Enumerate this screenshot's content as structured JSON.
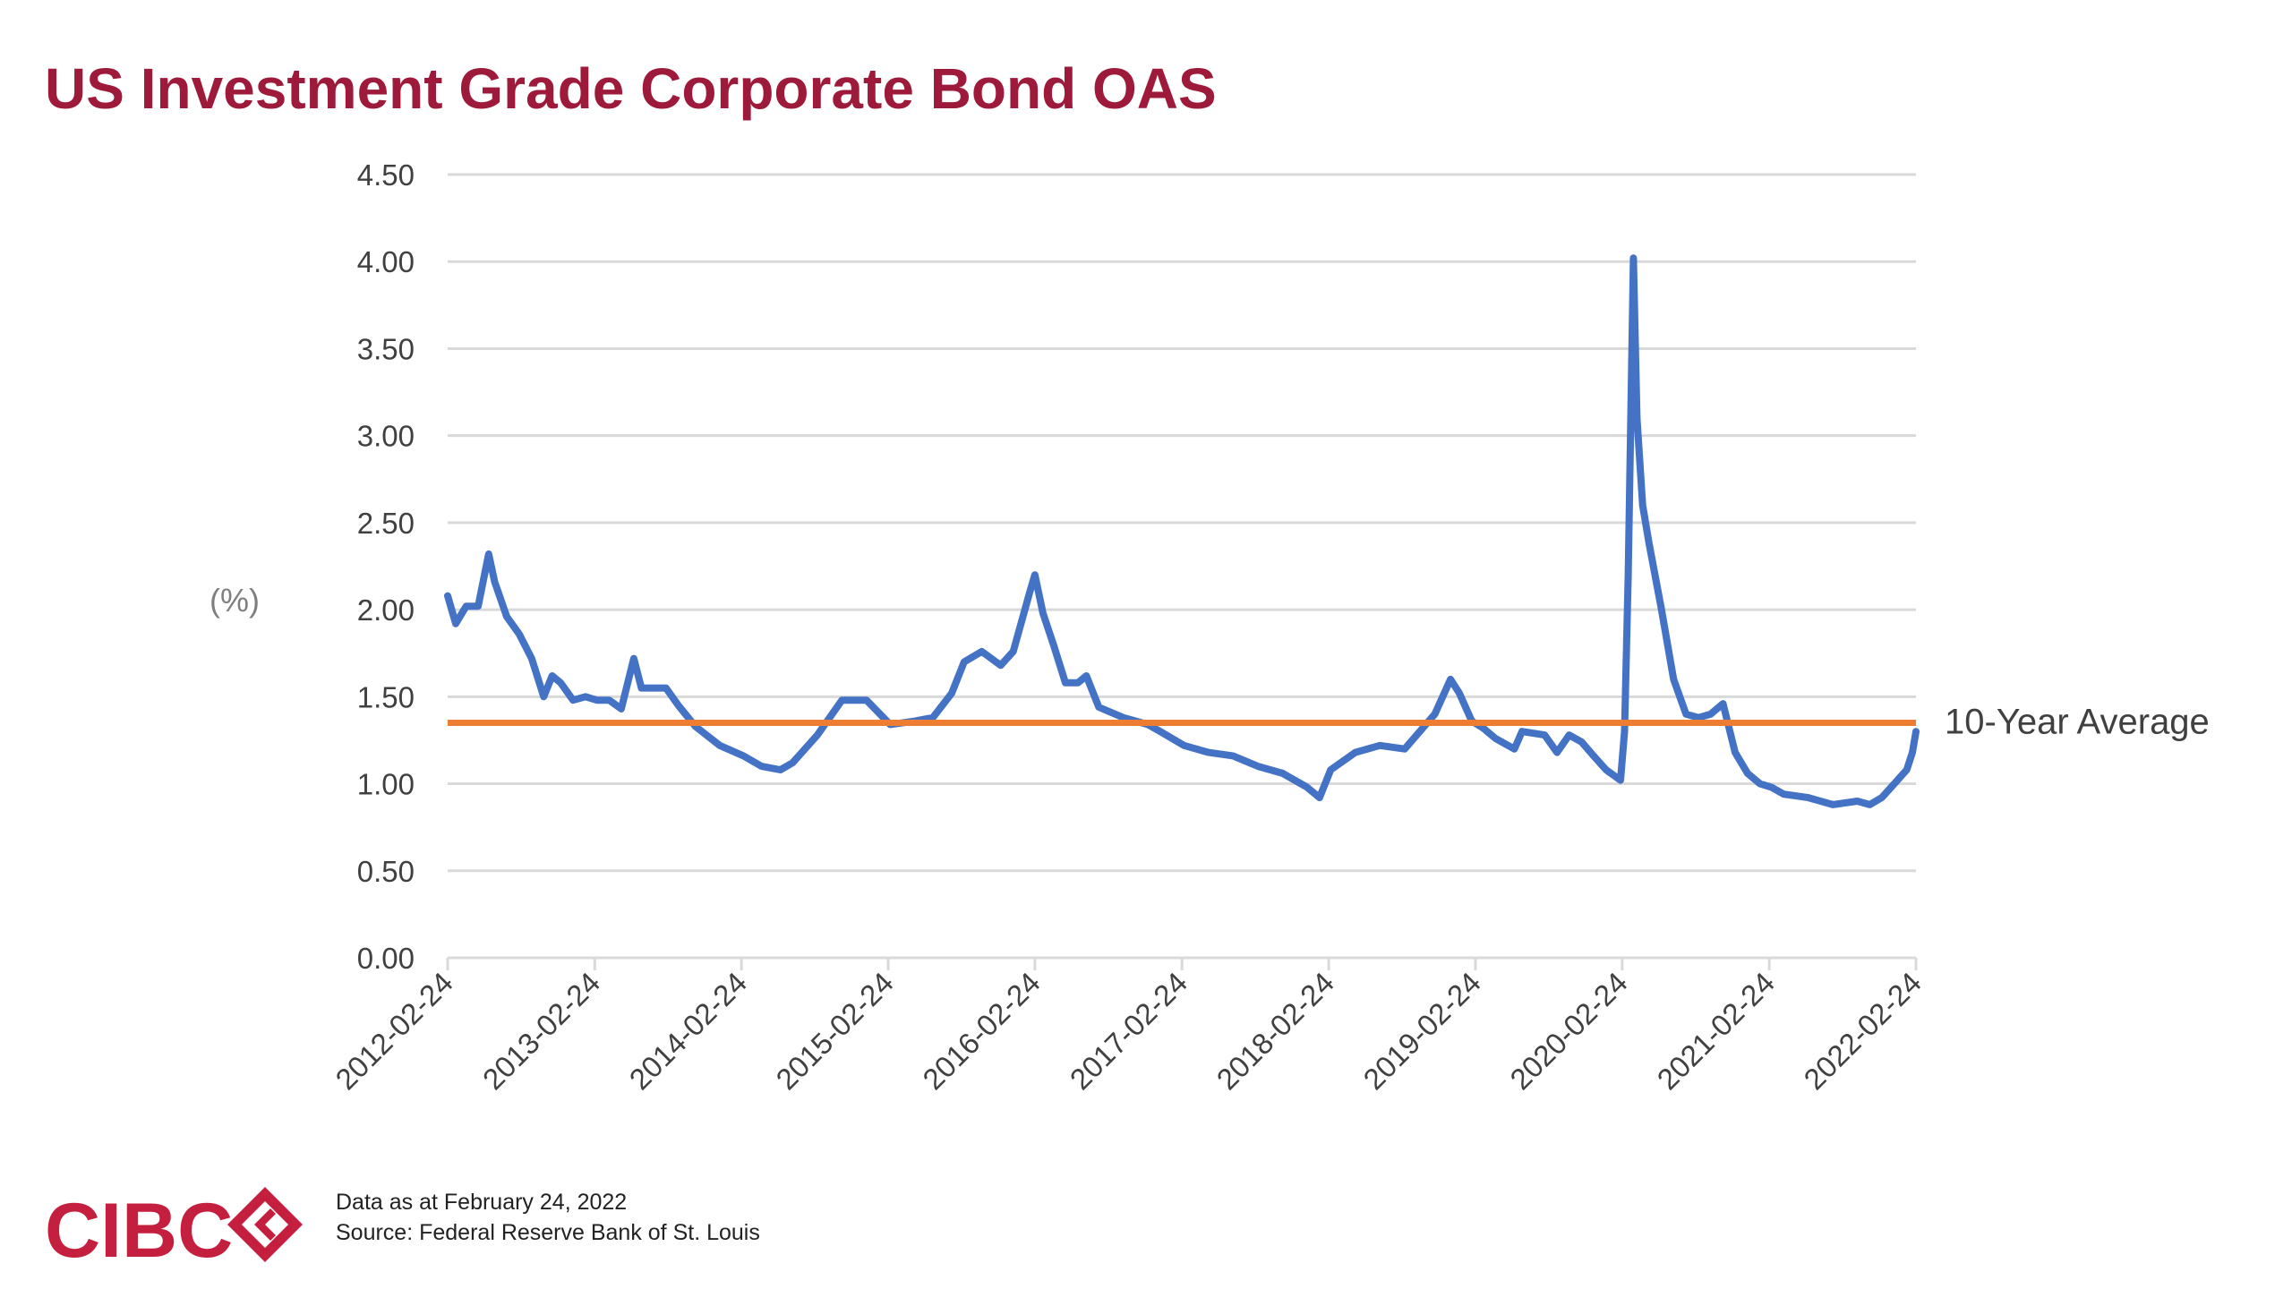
{
  "title": "US Investment Grade Corporate Bond OAS",
  "footer": {
    "data_as_at": "Data as at February 24, 2022",
    "source": "Source: Federal Reserve Bank of St. Louis"
  },
  "logo": {
    "text": "CIBC",
    "icon": "cibc-diamond-logo"
  },
  "colors": {
    "title": "#9e1a3a",
    "series": "#4472c4",
    "average": "#ed7d31",
    "grid": "#d9d9d9",
    "tick_text": "#404040",
    "logo": "#c41f3e"
  },
  "chart_data": {
    "type": "line",
    "title": "US Investment Grade Corporate Bond OAS",
    "xlabel": "",
    "ylabel": "(%)",
    "ylim": [
      0,
      4.5
    ],
    "yticks": [
      "0.00",
      "0.50",
      "1.00",
      "1.50",
      "2.00",
      "2.50",
      "3.00",
      "3.50",
      "4.00",
      "4.50"
    ],
    "x_ticks": [
      "2012-02-24",
      "2013-02-24",
      "2014-02-24",
      "2015-02-24",
      "2016-02-24",
      "2017-02-24",
      "2018-02-24",
      "2019-02-24",
      "2020-02-24",
      "2021-02-24",
      "2022-02-24"
    ],
    "grid": "horizontal",
    "series": [
      {
        "name": "",
        "x": [
          "2012-02-24",
          "2012-03-15",
          "2012-04-10",
          "2012-05-10",
          "2012-06-05",
          "2012-06-20",
          "2012-07-20",
          "2012-08-20",
          "2012-09-20",
          "2012-10-20",
          "2012-11-10",
          "2012-12-01",
          "2013-01-01",
          "2013-02-01",
          "2013-03-01",
          "2013-04-01",
          "2013-05-01",
          "2013-06-01",
          "2013-06-20",
          "2013-07-20",
          "2013-08-20",
          "2013-09-20",
          "2013-11-01",
          "2014-01-01",
          "2014-03-01",
          "2014-04-15",
          "2014-06-01",
          "2014-07-01",
          "2014-09-01",
          "2014-11-01",
          "2015-01-01",
          "2015-03-01",
          "2015-05-01",
          "2015-06-15",
          "2015-08-01",
          "2015-09-01",
          "2015-10-15",
          "2015-12-01",
          "2016-01-01",
          "2016-02-11",
          "2016-02-24",
          "2016-03-15",
          "2016-04-10",
          "2016-05-10",
          "2016-06-10",
          "2016-07-01",
          "2016-08-01",
          "2016-10-01",
          "2016-12-01",
          "2017-01-01",
          "2017-03-01",
          "2017-05-01",
          "2017-07-01",
          "2017-09-01",
          "2017-11-01",
          "2018-01-01",
          "2018-02-01",
          "2018-03-01",
          "2018-05-01",
          "2018-07-01",
          "2018-09-01",
          "2018-10-01",
          "2018-11-15",
          "2018-12-24",
          "2019-01-15",
          "2019-02-15",
          "2019-03-15",
          "2019-04-15",
          "2019-06-01",
          "2019-06-20",
          "2019-08-15",
          "2019-09-15",
          "2019-10-15",
          "2019-11-15",
          "2019-12-15",
          "2020-01-15",
          "2020-02-20",
          "2020-03-01",
          "2020-03-10",
          "2020-03-23",
          "2020-04-01",
          "2020-04-15",
          "2020-05-01",
          "2020-06-01",
          "2020-07-01",
          "2020-08-01",
          "2020-09-01",
          "2020-10-01",
          "2020-11-01",
          "2020-12-01",
          "2021-01-01",
          "2021-02-01",
          "2021-03-01",
          "2021-04-01",
          "2021-06-01",
          "2021-08-01",
          "2021-10-01",
          "2021-11-01",
          "2021-12-01",
          "2022-01-01",
          "2022-02-01",
          "2022-02-15",
          "2022-02-24"
        ],
        "values": [
          2.08,
          1.92,
          2.02,
          2.02,
          2.32,
          2.16,
          1.96,
          1.86,
          1.72,
          1.5,
          1.62,
          1.58,
          1.48,
          1.5,
          1.48,
          1.48,
          1.43,
          1.72,
          1.55,
          1.55,
          1.55,
          1.45,
          1.33,
          1.22,
          1.16,
          1.1,
          1.08,
          1.12,
          1.28,
          1.48,
          1.48,
          1.34,
          1.36,
          1.38,
          1.52,
          1.7,
          1.76,
          1.68,
          1.76,
          2.1,
          2.2,
          1.98,
          1.8,
          1.58,
          1.58,
          1.62,
          1.44,
          1.38,
          1.34,
          1.3,
          1.22,
          1.18,
          1.16,
          1.1,
          1.06,
          0.98,
          0.92,
          1.08,
          1.18,
          1.22,
          1.2,
          1.28,
          1.4,
          1.6,
          1.52,
          1.36,
          1.32,
          1.26,
          1.2,
          1.3,
          1.28,
          1.18,
          1.28,
          1.24,
          1.16,
          1.08,
          1.02,
          1.3,
          2.2,
          4.02,
          3.1,
          2.6,
          2.38,
          2.0,
          1.6,
          1.4,
          1.38,
          1.4,
          1.46,
          1.18,
          1.06,
          1.0,
          0.98,
          0.94,
          0.92,
          0.88,
          0.9,
          0.88,
          0.92,
          1.0,
          1.08,
          1.18,
          1.3
        ]
      }
    ],
    "reference_lines": [
      {
        "name": "10-Year Average",
        "value": 1.35
      }
    ]
  }
}
